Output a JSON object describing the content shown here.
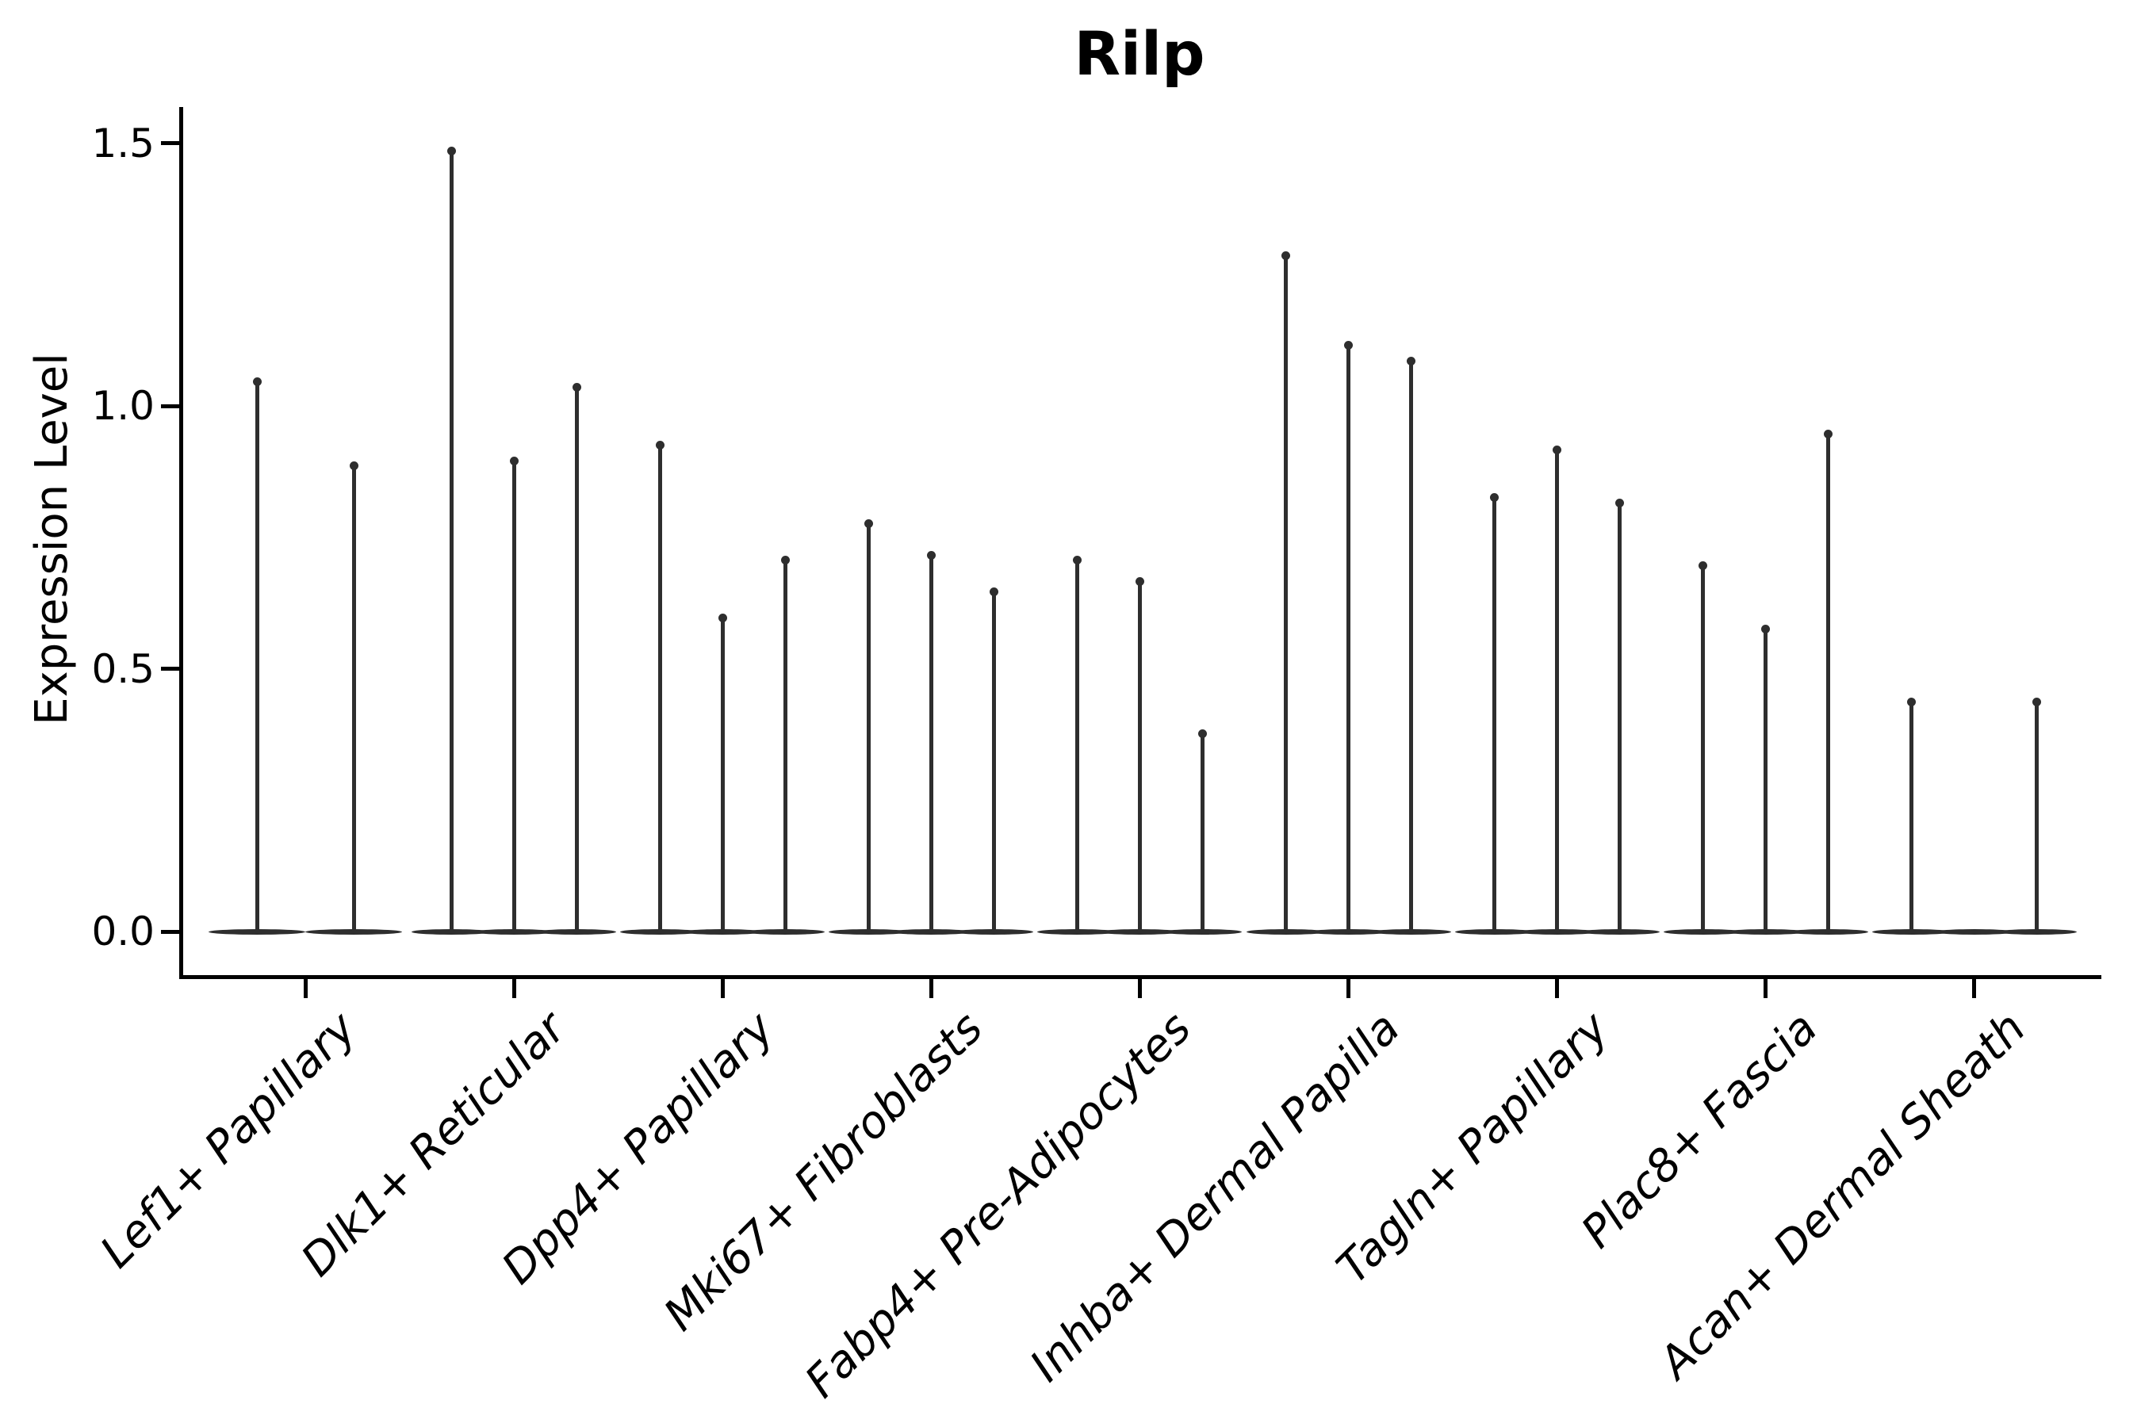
{
  "title": "Rilp",
  "y_axis": {
    "label": "Expression Level",
    "ticks": [
      {
        "text": "0.0",
        "value": 0.0
      },
      {
        "text": "0.5",
        "value": 0.5
      },
      {
        "text": "1.0",
        "value": 1.0
      },
      {
        "text": "1.5",
        "value": 1.5
      }
    ]
  },
  "colors": {
    "violin": "#2e2e2e",
    "axis": "#000000",
    "text": "#000000",
    "background": "#ffffff"
  },
  "chart_data": {
    "type": "violin",
    "title": "Rilp",
    "xlabel": "",
    "ylabel": "Expression Level",
    "ylim": [
      0,
      1.55
    ],
    "grid": false,
    "legend": false,
    "description": "Needle-thin violins (max expression spikes) with wide flat bases at zero expression; 2-3 violins per cell-type category",
    "categories": [
      "Lef1+ Papillary",
      "Dlk1+ Reticular",
      "Dpp4+ Papillary",
      "Mki67+ Fibroblasts",
      "Fabp4+ Pre-Adipocytes",
      "Inhba+ Dermal Papilla",
      "Tagln+ Papillary",
      "Plac8+ Fascia",
      "Acan+ Dermal Sheath"
    ],
    "series": [
      {
        "category": "Lef1+ Papillary",
        "violin_max_values": [
          1.05,
          0.89
        ],
        "offsets": [
          -61,
          61
        ]
      },
      {
        "category": "Dlk1+ Reticular",
        "violin_max_values": [
          1.49,
          0.9,
          1.04
        ],
        "offsets": [
          -79,
          0,
          79
        ]
      },
      {
        "category": "Dpp4+ Papillary",
        "violin_max_values": [
          0.93,
          0.6,
          0.71
        ],
        "offsets": [
          -79,
          0,
          79
        ]
      },
      {
        "category": "Mki67+ Fibroblasts",
        "violin_max_values": [
          0.78,
          0.72,
          0.65
        ],
        "offsets": [
          -79,
          0,
          79
        ]
      },
      {
        "category": "Fabp4+ Pre-Adipocytes",
        "violin_max_values": [
          0.71,
          0.67,
          0.38
        ],
        "offsets": [
          -79,
          0,
          79
        ]
      },
      {
        "category": "Inhba+ Dermal Papilla",
        "violin_max_values": [
          1.29,
          1.12,
          1.09
        ],
        "offsets": [
          -79,
          0,
          79
        ]
      },
      {
        "category": "Tagln+ Papillary",
        "violin_max_values": [
          0.83,
          0.92,
          0.82
        ],
        "offsets": [
          -79,
          0,
          79
        ]
      },
      {
        "category": "Plac8+ Fascia",
        "violin_max_values": [
          0.7,
          0.58,
          0.95
        ],
        "offsets": [
          -79,
          0,
          79
        ]
      },
      {
        "category": "Acan+ Dermal Sheath",
        "violin_max_values": [
          0.44,
          0.0,
          0.44
        ],
        "offsets": [
          -79,
          0,
          79
        ]
      }
    ]
  }
}
